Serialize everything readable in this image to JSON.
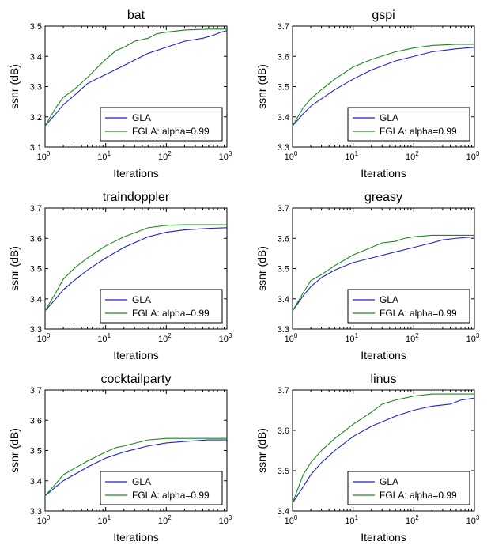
{
  "colors": {
    "gla": "#1f1fd6",
    "fgla": "#1a8a1a",
    "axis": "#000000"
  },
  "chart_data": [
    {
      "type": "line",
      "title": "bat",
      "xlabel": "Iterations",
      "ylabel": "ssnr (dB)",
      "xscale": "log",
      "xlim": [
        1,
        1000
      ],
      "ylim": [
        3.1,
        3.5
      ],
      "yticks": [
        "3.1",
        "3.2",
        "3.3",
        "3.4",
        "3.5"
      ],
      "xticks": [
        "10",
        "10",
        "10",
        "10"
      ],
      "xtick_exponents": [
        "0",
        "1",
        "2",
        "3"
      ],
      "legend": "bottom-right",
      "grid": false,
      "series": [
        {
          "name": "GLA",
          "color": "gla",
          "x": [
            1,
            1.5,
            2,
            3,
            5,
            7,
            10,
            20,
            50,
            100,
            200,
            400,
            600,
            800,
            1000
          ],
          "y": [
            3.17,
            3.21,
            3.24,
            3.27,
            3.31,
            3.325,
            3.34,
            3.37,
            3.41,
            3.43,
            3.45,
            3.46,
            3.47,
            3.48,
            3.485
          ]
        },
        {
          "name": "FGLA: alpha=0.99",
          "color": "fgla",
          "x": [
            1,
            1.5,
            2,
            3,
            5,
            7,
            10,
            15,
            20,
            30,
            50,
            70,
            100,
            200,
            500,
            1000
          ],
          "y": [
            3.17,
            3.23,
            3.265,
            3.29,
            3.33,
            3.36,
            3.39,
            3.42,
            3.43,
            3.45,
            3.46,
            3.475,
            3.48,
            3.487,
            3.49,
            3.49
          ]
        }
      ]
    },
    {
      "type": "line",
      "title": "gspi",
      "xlabel": "Iterations",
      "ylabel": "ssnr (dB)",
      "xscale": "log",
      "xlim": [
        1,
        1000
      ],
      "ylim": [
        3.3,
        3.7
      ],
      "yticks": [
        "3.3",
        "3.4",
        "3.5",
        "3.6",
        "3.7"
      ],
      "xticks": [
        "10",
        "10",
        "10",
        "10"
      ],
      "xtick_exponents": [
        "0",
        "1",
        "2",
        "3"
      ],
      "legend": "bottom-right",
      "grid": false,
      "series": [
        {
          "name": "GLA",
          "color": "gla",
          "x": [
            1,
            1.5,
            2,
            3,
            5,
            10,
            20,
            50,
            100,
            200,
            500,
            1000
          ],
          "y": [
            3.37,
            3.41,
            3.435,
            3.46,
            3.49,
            3.525,
            3.555,
            3.585,
            3.6,
            3.615,
            3.625,
            3.63
          ]
        },
        {
          "name": "FGLA: alpha=0.99",
          "color": "fgla",
          "x": [
            1,
            1.5,
            2,
            3,
            5,
            10,
            20,
            50,
            100,
            200,
            500,
            1000
          ],
          "y": [
            3.37,
            3.43,
            3.46,
            3.49,
            3.525,
            3.565,
            3.59,
            3.615,
            3.628,
            3.636,
            3.64,
            3.64
          ]
        }
      ]
    },
    {
      "type": "line",
      "title": "traindoppler",
      "xlabel": "Iterations",
      "ylabel": "ssnr (dB)",
      "xscale": "log",
      "xlim": [
        1,
        1000
      ],
      "ylim": [
        3.3,
        3.7
      ],
      "yticks": [
        "3.3",
        "3.4",
        "3.5",
        "3.6",
        "3.7"
      ],
      "xticks": [
        "10",
        "10",
        "10",
        "10"
      ],
      "xtick_exponents": [
        "0",
        "1",
        "2",
        "3"
      ],
      "legend": "bottom-right",
      "grid": false,
      "series": [
        {
          "name": "GLA",
          "color": "gla",
          "x": [
            1,
            1.5,
            2,
            3,
            5,
            10,
            20,
            50,
            100,
            200,
            500,
            1000
          ],
          "y": [
            3.36,
            3.4,
            3.43,
            3.46,
            3.495,
            3.535,
            3.57,
            3.605,
            3.62,
            3.628,
            3.633,
            3.635
          ]
        },
        {
          "name": "FGLA: alpha=0.99",
          "color": "fgla",
          "x": [
            1,
            1.5,
            2,
            3,
            5,
            10,
            20,
            50,
            100,
            200,
            500,
            1000
          ],
          "y": [
            3.36,
            3.42,
            3.465,
            3.5,
            3.535,
            3.575,
            3.605,
            3.635,
            3.643,
            3.645,
            3.645,
            3.645
          ]
        }
      ]
    },
    {
      "type": "line",
      "title": "greasy",
      "xlabel": "Iterations",
      "ylabel": "ssnr (dB)",
      "xscale": "log",
      "xlim": [
        1,
        1000
      ],
      "ylim": [
        3.3,
        3.7
      ],
      "yticks": [
        "3.3",
        "3.4",
        "3.5",
        "3.6",
        "3.7"
      ],
      "xticks": [
        "10",
        "10",
        "10",
        "10"
      ],
      "xtick_exponents": [
        "0",
        "1",
        "2",
        "3"
      ],
      "legend": "bottom-right",
      "grid": false,
      "series": [
        {
          "name": "GLA",
          "color": "gla",
          "x": [
            1,
            1.5,
            2,
            3,
            5,
            10,
            20,
            50,
            100,
            200,
            300,
            500,
            1000
          ],
          "y": [
            3.36,
            3.41,
            3.44,
            3.47,
            3.495,
            3.52,
            3.535,
            3.555,
            3.57,
            3.585,
            3.595,
            3.6,
            3.605
          ]
        },
        {
          "name": "FGLA: alpha=0.99",
          "color": "fgla",
          "x": [
            1,
            1.5,
            2,
            3,
            5,
            10,
            20,
            30,
            50,
            70,
            100,
            200,
            500,
            1000
          ],
          "y": [
            3.36,
            3.42,
            3.46,
            3.48,
            3.51,
            3.545,
            3.57,
            3.585,
            3.59,
            3.6,
            3.605,
            3.61,
            3.61,
            3.61
          ]
        }
      ]
    },
    {
      "type": "line",
      "title": "cocktailparty",
      "xlabel": "Iterations",
      "ylabel": "ssnr (dB)",
      "xscale": "log",
      "xlim": [
        1,
        1000
      ],
      "ylim": [
        3.3,
        3.7
      ],
      "yticks": [
        "3.3",
        "3.4",
        "3.5",
        "3.6",
        "3.7"
      ],
      "xticks": [
        "10",
        "10",
        "10",
        "10"
      ],
      "xtick_exponents": [
        "0",
        "1",
        "2",
        "3"
      ],
      "legend": "bottom-right",
      "grid": false,
      "series": [
        {
          "name": "GLA",
          "color": "gla",
          "x": [
            1,
            1.5,
            2,
            3,
            5,
            10,
            20,
            50,
            100,
            200,
            500,
            1000
          ],
          "y": [
            3.35,
            3.38,
            3.4,
            3.42,
            3.445,
            3.475,
            3.495,
            3.515,
            3.525,
            3.53,
            3.535,
            3.535
          ]
        },
        {
          "name": "FGLA: alpha=0.99",
          "color": "fgla",
          "x": [
            1,
            1.5,
            2,
            3,
            5,
            10,
            15,
            20,
            50,
            100,
            200,
            500,
            1000
          ],
          "y": [
            3.35,
            3.39,
            3.42,
            3.44,
            3.465,
            3.495,
            3.51,
            3.515,
            3.535,
            3.54,
            3.54,
            3.54,
            3.54
          ]
        }
      ]
    },
    {
      "type": "line",
      "title": "linus",
      "xlabel": "Iterations",
      "ylabel": "ssnr (dB)",
      "xscale": "log",
      "xlim": [
        1,
        1000
      ],
      "ylim": [
        3.4,
        3.7
      ],
      "yticks": [
        "3.4",
        "3.5",
        "3.6",
        "3.7"
      ],
      "xticks": [
        "10",
        "10",
        "10",
        "10"
      ],
      "xtick_exponents": [
        "0",
        "1",
        "2",
        "3"
      ],
      "legend": "bottom-right",
      "grid": false,
      "series": [
        {
          "name": "GLA",
          "color": "gla",
          "x": [
            1,
            1.5,
            2,
            3,
            5,
            10,
            20,
            50,
            100,
            200,
            400,
            600,
            1000
          ],
          "y": [
            3.42,
            3.46,
            3.49,
            3.52,
            3.55,
            3.585,
            3.61,
            3.635,
            3.65,
            3.66,
            3.665,
            3.675,
            3.68
          ]
        },
        {
          "name": "FGLA: alpha=0.99",
          "color": "fgla",
          "x": [
            1,
            1.5,
            2,
            3,
            5,
            10,
            20,
            30,
            50,
            100,
            200,
            500,
            1000
          ],
          "y": [
            3.42,
            3.49,
            3.52,
            3.55,
            3.58,
            3.615,
            3.645,
            3.665,
            3.675,
            3.685,
            3.69,
            3.69,
            3.69
          ]
        }
      ]
    }
  ]
}
